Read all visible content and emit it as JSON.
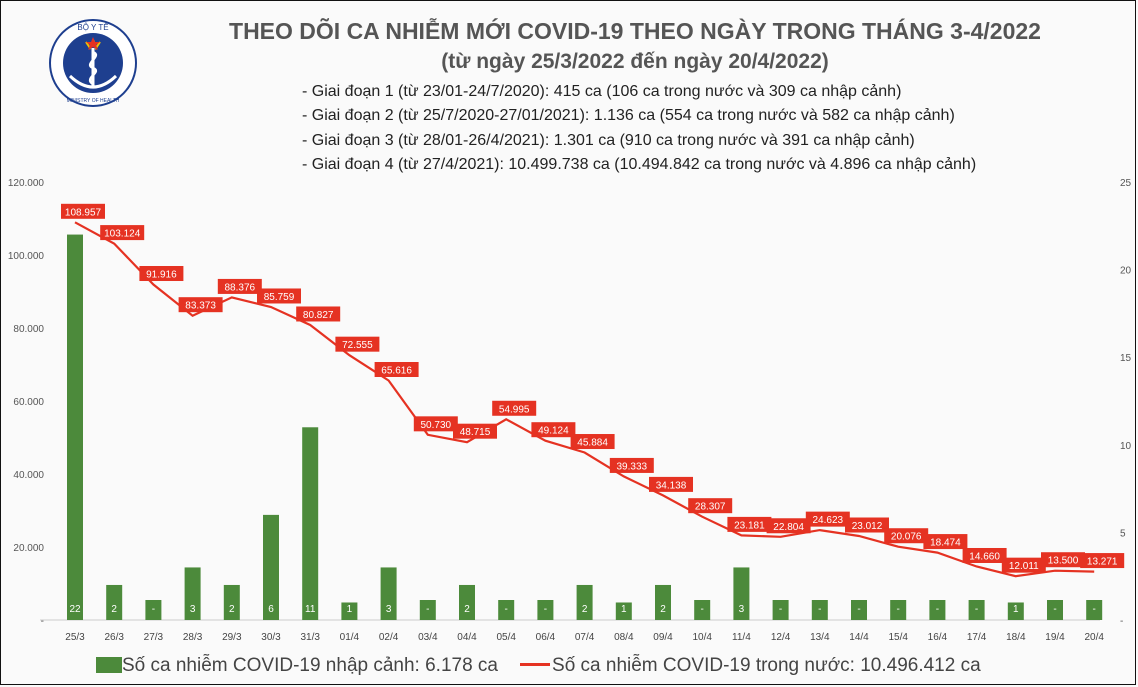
{
  "header": {
    "title": "THEO DÕI CA NHIỄM MỚI COVID-19 THEO NGÀY TRONG THÁNG 3-4/2022",
    "subtitle": "(từ ngày 25/3/2022 đến ngày 20/4/2022)",
    "phases": [
      "- Giai đoạn 1 (từ 23/01-24/7/2020): 415 ca (106 ca trong nước và 309 ca nhập cảnh)",
      "- Giai đoạn 2 (từ 25/7/2020-27/01/2021): 1.136 ca (554 ca trong nước và 582 ca nhập cảnh)",
      "- Giai đoạn 3 (từ 28/01-26/4/2021): 1.301 ca (910 ca trong nước và 391 ca nhập cảnh)",
      "- Giai đoạn 4 (từ 27/4/2021): 10.499.738 ca (10.494.842 ca trong nước và 4.896 ca nhập cảnh)"
    ]
  },
  "logo": {
    "top_text": "BỘ Y TẾ",
    "bottom_text": "MINISTRY OF HEALTH"
  },
  "legend": {
    "bar_label": "Số ca nhiễm COVID-19 nhập cảnh: 6.178 ca",
    "line_label": "Số ca nhiễm COVID-19 trong nước: 10.496.412 ca"
  },
  "colors": {
    "bar": "#4c8a3b",
    "line": "#e53222",
    "label_bg": "#e53222",
    "label_text": "#ffffff"
  },
  "chart_data": {
    "type": "bar+line",
    "categories": [
      "25/3",
      "26/3",
      "27/3",
      "28/3",
      "29/3",
      "30/3",
      "31/3",
      "01/4",
      "02/4",
      "03/4",
      "04/4",
      "05/4",
      "06/4",
      "07/4",
      "08/4",
      "09/4",
      "10/4",
      "11/4",
      "12/4",
      "13/4",
      "14/4",
      "15/4",
      "16/4",
      "17/4",
      "18/4",
      "19/4",
      "20/4"
    ],
    "left_axis": {
      "ylim": [
        0,
        120000
      ],
      "ticks": [
        "-",
        "20.000",
        "40.000",
        "60.000",
        "80.000",
        "100.000",
        "120.000"
      ]
    },
    "right_axis": {
      "ylim": [
        0,
        25
      ],
      "ticks": [
        "-",
        "5",
        "10",
        "15",
        "20",
        "25"
      ]
    },
    "series": [
      {
        "name": "Số ca nhiễm COVID-19 nhập cảnh",
        "type": "bar",
        "axis": "right",
        "values": [
          22,
          2,
          0,
          3,
          2,
          6,
          11,
          1,
          3,
          0,
          2,
          0,
          0,
          2,
          1,
          2,
          0,
          3,
          0,
          0,
          0,
          0,
          0,
          0,
          1,
          0,
          0
        ],
        "labels": [
          "22",
          "2",
          "-",
          "3",
          "2",
          "6",
          "11",
          "1",
          "3",
          "-",
          "2",
          "-",
          "-",
          "2",
          "1",
          "2",
          "-",
          "3",
          "-",
          "-",
          "-",
          "-",
          "-",
          "-",
          "1",
          "-",
          "-"
        ]
      },
      {
        "name": "Số ca nhiễm COVID-19 trong nước",
        "type": "line",
        "axis": "left",
        "values": [
          108957,
          103124,
          91916,
          83373,
          88376,
          85759,
          80827,
          72555,
          65616,
          50730,
          48715,
          54995,
          49124,
          45884,
          39333,
          34138,
          28307,
          23181,
          22804,
          24623,
          23012,
          20076,
          18474,
          14660,
          12011,
          13500,
          13271
        ],
        "labels": [
          "108.957",
          "103.124",
          "91.916",
          "83.373",
          "88.376",
          "85.759",
          "80.827",
          "72.555",
          "65.616",
          "50.730",
          "48.715",
          "54.995",
          "49.124",
          "45.884",
          "39.333",
          "34.138",
          "28.307",
          "23.181",
          "22.804",
          "24.623",
          "23.012",
          "20.076",
          "18.474",
          "14.660",
          "12.011",
          "13.500",
          "13.271"
        ]
      }
    ]
  }
}
